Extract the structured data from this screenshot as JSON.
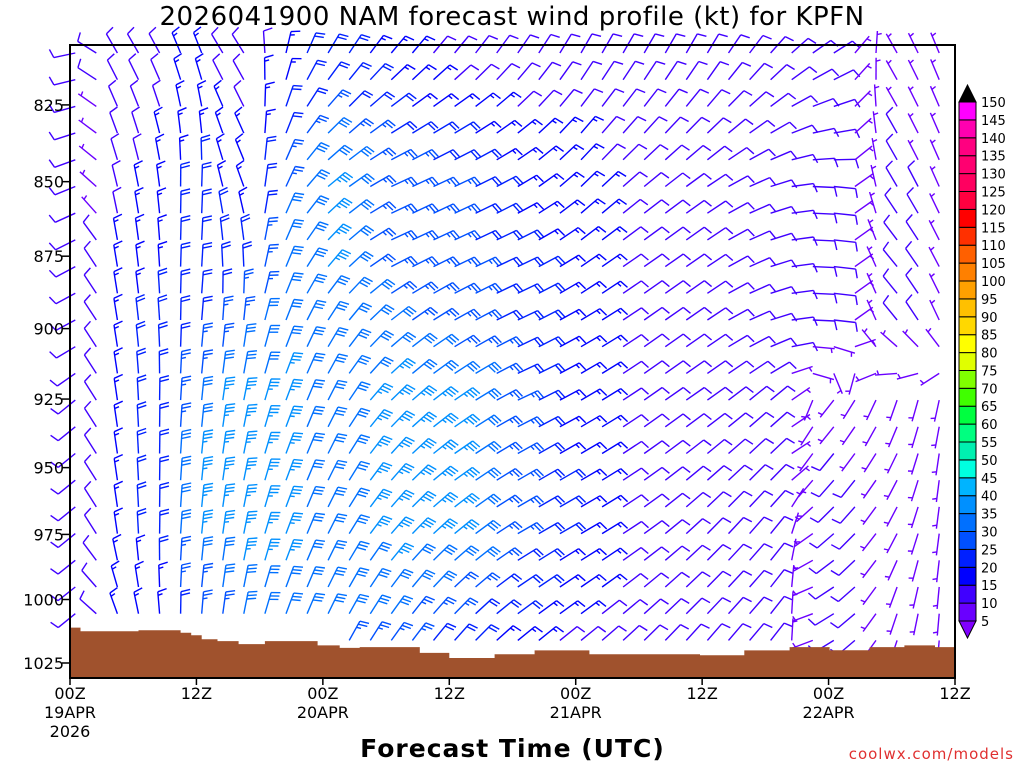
{
  "chart_data": {
    "type": "wind-barb profile",
    "title": "2026041900 NAM forecast wind profile (kt) for KPFN",
    "xlabel": "Forecast Time (UTC)",
    "ylabel": "",
    "credit": "coolwx.com/models",
    "xlim_hours": [
      0,
      84
    ],
    "ylim_hPa": [
      806,
      1031
    ],
    "y_scale": "log",
    "yticks": [
      825,
      850,
      875,
      900,
      925,
      950,
      975,
      1000,
      1025
    ],
    "xticks": [
      {
        "hour": 0,
        "label": "00Z",
        "date": "19APR",
        "year": "2026"
      },
      {
        "hour": 12,
        "label": "12Z",
        "date": "",
        "year": ""
      },
      {
        "hour": 24,
        "label": "00Z",
        "date": "20APR",
        "year": ""
      },
      {
        "hour": 36,
        "label": "12Z",
        "date": "",
        "year": ""
      },
      {
        "hour": 48,
        "label": "00Z",
        "date": "21APR",
        "year": ""
      },
      {
        "hour": 60,
        "label": "12Z",
        "date": "",
        "year": ""
      },
      {
        "hour": 72,
        "label": "00Z",
        "date": "22APR",
        "year": ""
      },
      {
        "hour": 84,
        "label": "12Z",
        "date": "",
        "year": ""
      }
    ],
    "colorbar": {
      "labels": [
        5,
        10,
        15,
        20,
        25,
        30,
        35,
        40,
        45,
        50,
        55,
        60,
        65,
        70,
        75,
        80,
        85,
        90,
        95,
        100,
        105,
        110,
        115,
        120,
        125,
        130,
        135,
        140,
        145,
        150
      ],
      "colors": [
        "#6a00ff",
        "#4000ff",
        "#0000ff",
        "#0020ff",
        "#0050ff",
        "#0070ff",
        "#0090ff",
        "#00b4ff",
        "#00ffe0",
        "#00f0b0",
        "#00ff80",
        "#00ff40",
        "#40ff00",
        "#80ff00",
        "#e0ff00",
        "#ffff00",
        "#ffd800",
        "#ffc000",
        "#ffa000",
        "#ff8000",
        "#ff6000",
        "#ff3000",
        "#ff0000",
        "#ff0040",
        "#ff0060",
        "#ff0070",
        "#ff0080",
        "#ff00b0",
        "#ff00ff"
      ],
      "under_color": "#8000ff",
      "over_color": "#000000"
    },
    "terrain_color": "#a0522d",
    "terrain_surface_pressure": [
      [
        0,
        1011
      ],
      [
        1,
        1012.4
      ],
      [
        6.5,
        1012
      ],
      [
        10.5,
        1013
      ],
      [
        11.5,
        1014
      ],
      [
        12.5,
        1015.6
      ],
      [
        14,
        1016.3
      ],
      [
        16,
        1017.5
      ],
      [
        18.5,
        1016.3
      ],
      [
        23.5,
        1018
      ],
      [
        25.6,
        1019
      ],
      [
        27.5,
        1018.7
      ],
      [
        33.2,
        1021
      ],
      [
        36,
        1023
      ],
      [
        40.3,
        1021.5
      ],
      [
        44.1,
        1020
      ],
      [
        49.3,
        1021.5
      ],
      [
        59.8,
        1021.9
      ],
      [
        64,
        1020
      ],
      [
        68.3,
        1018.7
      ],
      [
        72.1,
        1019.9
      ],
      [
        75.9,
        1018.7
      ],
      [
        79.2,
        1018
      ],
      [
        82.1,
        1018.7
      ],
      [
        84,
        1018.7
      ]
    ],
    "wind": {
      "hours": [
        0,
        4,
        8,
        12,
        16,
        20,
        24,
        30,
        36,
        42,
        48,
        54,
        60,
        66,
        72,
        78,
        84
      ],
      "levels_hPa": [
        810,
        850,
        875,
        900,
        925,
        950,
        975,
        1000,
        1020
      ],
      "direction_deg": [
        [
          250,
          330,
          330,
          340,
          320,
          10,
          30,
          40,
          40,
          35,
          30,
          30,
          30,
          40,
          60,
          330,
          340
        ],
        [
          240,
          345,
          350,
          5,
          330,
          20,
          50,
          65,
          65,
          60,
          45,
          50,
          55,
          70,
          100,
          330,
          340
        ],
        [
          230,
          350,
          355,
          5,
          350,
          20,
          40,
          65,
          65,
          65,
          55,
          55,
          55,
          70,
          100,
          320,
          340
        ],
        [
          230,
          350,
          355,
          5,
          5,
          20,
          30,
          50,
          60,
          65,
          60,
          55,
          55,
          70,
          100,
          320,
          345
        ],
        [
          220,
          350,
          0,
          5,
          10,
          20,
          25,
          45,
          55,
          65,
          60,
          55,
          55,
          50,
          220,
          200,
          190
        ],
        [
          220,
          350,
          0,
          5,
          10,
          20,
          25,
          40,
          55,
          60,
          60,
          55,
          50,
          45,
          220,
          210,
          180
        ],
        [
          220,
          350,
          0,
          5,
          10,
          20,
          25,
          40,
          50,
          60,
          60,
          55,
          45,
          40,
          230,
          210,
          180
        ],
        [
          220,
          340,
          355,
          5,
          10,
          20,
          25,
          35,
          45,
          55,
          55,
          50,
          45,
          40,
          240,
          200,
          180
        ],
        [
          220,
          330,
          350,
          0,
          10,
          20,
          25,
          35,
          40,
          50,
          50,
          45,
          40,
          40,
          240,
          200,
          180
        ]
      ],
      "speed_kt": [
        [
          10,
          10,
          10,
          15,
          10,
          15,
          20,
          15,
          10,
          10,
          10,
          10,
          10,
          10,
          10,
          5,
          5
        ],
        [
          10,
          10,
          15,
          20,
          15,
          25,
          35,
          25,
          25,
          15,
          15,
          10,
          10,
          10,
          10,
          10,
          5
        ],
        [
          10,
          15,
          15,
          20,
          20,
          30,
          35,
          25,
          25,
          20,
          15,
          10,
          10,
          10,
          10,
          10,
          5
        ],
        [
          10,
          15,
          20,
          20,
          25,
          30,
          30,
          30,
          25,
          20,
          15,
          10,
          10,
          10,
          10,
          10,
          5
        ],
        [
          10,
          15,
          20,
          30,
          35,
          35,
          30,
          35,
          35,
          25,
          15,
          10,
          10,
          10,
          5,
          5,
          5
        ],
        [
          10,
          15,
          20,
          35,
          35,
          35,
          30,
          35,
          35,
          25,
          15,
          10,
          10,
          10,
          10,
          5,
          5
        ],
        [
          10,
          15,
          20,
          35,
          35,
          35,
          30,
          35,
          35,
          25,
          15,
          10,
          10,
          10,
          10,
          5,
          5
        ],
        [
          10,
          15,
          15,
          25,
          30,
          30,
          30,
          30,
          25,
          20,
          15,
          10,
          10,
          10,
          10,
          5,
          5
        ],
        [
          10,
          10,
          15,
          20,
          25,
          25,
          25,
          25,
          20,
          15,
          10,
          10,
          10,
          10,
          10,
          5,
          5
        ]
      ]
    }
  }
}
